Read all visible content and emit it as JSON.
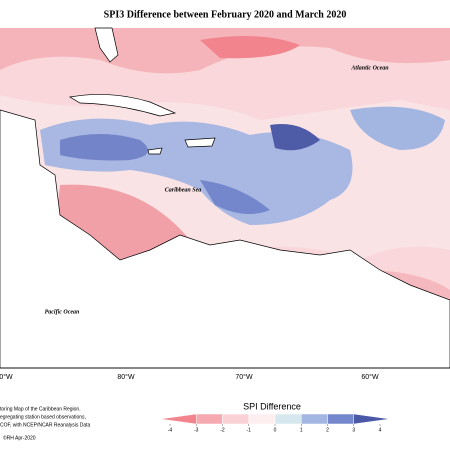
{
  "title": "SPI3 Difference between February 2020 and March 2020",
  "ocean_labels": [
    "Atlantic Ocean",
    "Caribbean Sea",
    "Pacific Ocean"
  ],
  "longitude_labels": [
    "0°W",
    "80°W",
    "70°W",
    "60°W"
  ],
  "footnote": [
    "toring Map of the Caribbean Region.",
    "egregating station based observations,",
    "COF, with NCEP/NCAR Reanalysis Data"
  ],
  "credit": "©RH Apr-2020",
  "legend": {
    "title": "SPI Difference",
    "ticks": [
      -4,
      -3,
      -2,
      -1,
      0,
      1,
      2,
      3,
      4
    ],
    "colors": [
      "#f2848e",
      "#f6a9b0",
      "#fad2d6",
      "#fdeef0",
      "#d6e8ee",
      "#a3b6e2",
      "#7587cc",
      "#4b58a6"
    ]
  }
}
